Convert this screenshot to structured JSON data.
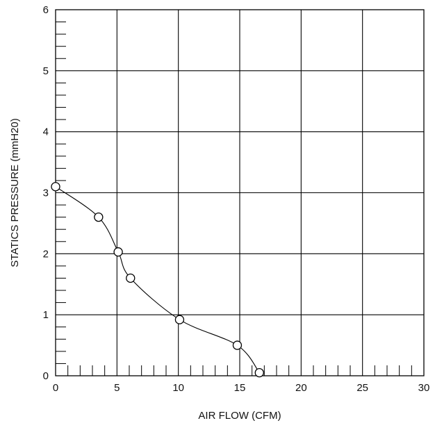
{
  "chart_data": {
    "type": "line",
    "title": "",
    "xlabel": "AIR FLOW (CFM)",
    "ylabel": "STATICS PRESSURE  (mmH20)",
    "xlim": [
      0,
      30
    ],
    "ylim": [
      0,
      6
    ],
    "x_ticks": [
      0,
      5,
      10,
      15,
      20,
      25,
      30
    ],
    "y_ticks": [
      0,
      1,
      2,
      3,
      4,
      5,
      6
    ],
    "grid": true,
    "x_minor_ticks_per_unit": 1,
    "y_minor_ticks_per_unit": 5,
    "marker": "open-circle",
    "colors": {
      "line": "#000000",
      "grid": "#000000",
      "background": "#ffffff"
    },
    "series": [
      {
        "x": [
          0,
          3.5,
          5.1,
          6.1,
          10.1,
          14.8,
          16.6
        ],
        "y": [
          3.1,
          2.6,
          2.03,
          1.6,
          0.92,
          0.5,
          0.05
        ]
      }
    ]
  }
}
